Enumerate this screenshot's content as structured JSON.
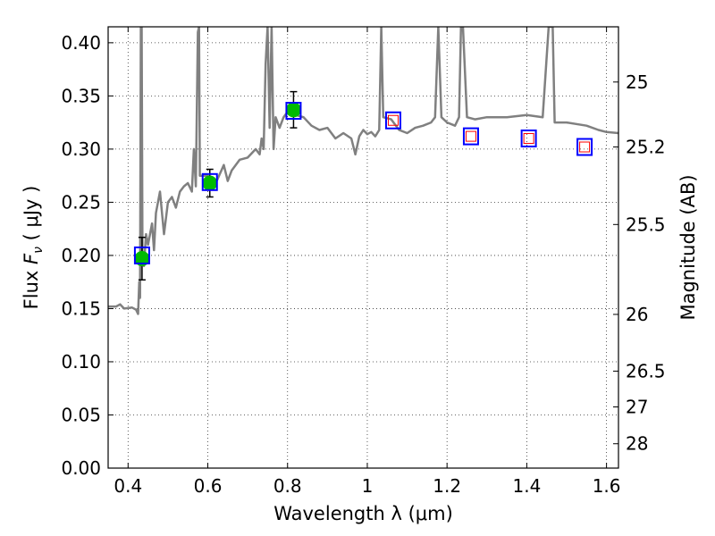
{
  "chart_data": {
    "type": "scatter",
    "xlabel": "Wavelength  λ (μm)",
    "ylabel": "Flux  F_ν  ( μJy )",
    "ylabel_right": "Magnitude (AB)",
    "xlim": [
      0.35,
      1.63
    ],
    "ylim": [
      0.0,
      0.415
    ],
    "grid": true,
    "x_ticks": [
      0.4,
      0.6,
      0.8,
      1.0,
      1.2,
      1.4,
      1.6
    ],
    "x_tick_labels": [
      "0.4",
      "0.6",
      "0.8",
      "1",
      "1.2",
      "1.4",
      "1.6"
    ],
    "y_ticks": [
      0.0,
      0.05,
      0.1,
      0.15,
      0.2,
      0.25,
      0.3,
      0.35,
      0.4
    ],
    "y_tick_labels": [
      "0.00",
      "0.05",
      "0.10",
      "0.15",
      "0.20",
      "0.25",
      "0.30",
      "0.35",
      "0.40"
    ],
    "mag_ticks": [
      25,
      25.2,
      25.5,
      26,
      26.5,
      27,
      28
    ],
    "mag_tick_labels": [
      "25",
      "25.2",
      "25.5",
      "26",
      "26.5",
      "27",
      "28"
    ],
    "series": [
      {
        "kind": "model-spectrum",
        "color": "#808080",
        "points": [
          [
            0.35,
            0.152
          ],
          [
            0.37,
            0.152
          ],
          [
            0.38,
            0.154
          ],
          [
            0.39,
            0.15
          ],
          [
            0.41,
            0.151
          ],
          [
            0.42,
            0.149
          ],
          [
            0.425,
            0.145
          ],
          [
            0.428,
            0.175
          ],
          [
            0.43,
            0.16
          ],
          [
            0.432,
            0.415
          ],
          [
            0.434,
            0.415
          ],
          [
            0.436,
            0.2
          ],
          [
            0.44,
            0.19
          ],
          [
            0.445,
            0.22
          ],
          [
            0.45,
            0.21
          ],
          [
            0.46,
            0.23
          ],
          [
            0.465,
            0.205
          ],
          [
            0.47,
            0.24
          ],
          [
            0.48,
            0.26
          ],
          [
            0.49,
            0.22
          ],
          [
            0.5,
            0.25
          ],
          [
            0.51,
            0.255
          ],
          [
            0.52,
            0.245
          ],
          [
            0.53,
            0.26
          ],
          [
            0.54,
            0.265
          ],
          [
            0.55,
            0.268
          ],
          [
            0.56,
            0.26
          ],
          [
            0.565,
            0.3
          ],
          [
            0.57,
            0.265
          ],
          [
            0.575,
            0.41
          ],
          [
            0.578,
            0.415
          ],
          [
            0.58,
            0.275
          ],
          [
            0.6,
            0.275
          ],
          [
            0.62,
            0.268
          ],
          [
            0.64,
            0.285
          ],
          [
            0.65,
            0.27
          ],
          [
            0.66,
            0.28
          ],
          [
            0.68,
            0.29
          ],
          [
            0.7,
            0.292
          ],
          [
            0.72,
            0.3
          ],
          [
            0.73,
            0.295
          ],
          [
            0.735,
            0.31
          ],
          [
            0.74,
            0.3
          ],
          [
            0.745,
            0.38
          ],
          [
            0.75,
            0.415
          ],
          [
            0.755,
            0.32
          ],
          [
            0.76,
            0.415
          ],
          [
            0.765,
            0.3
          ],
          [
            0.77,
            0.33
          ],
          [
            0.78,
            0.32
          ],
          [
            0.79,
            0.33
          ],
          [
            0.8,
            0.335
          ],
          [
            0.82,
            0.332
          ],
          [
            0.84,
            0.33
          ],
          [
            0.86,
            0.322
          ],
          [
            0.88,
            0.318
          ],
          [
            0.9,
            0.32
          ],
          [
            0.92,
            0.31
          ],
          [
            0.94,
            0.315
          ],
          [
            0.96,
            0.31
          ],
          [
            0.97,
            0.295
          ],
          [
            0.98,
            0.312
          ],
          [
            0.99,
            0.318
          ],
          [
            1.0,
            0.314
          ],
          [
            1.01,
            0.316
          ],
          [
            1.02,
            0.312
          ],
          [
            1.03,
            0.318
          ],
          [
            1.035,
            0.415
          ],
          [
            1.04,
            0.33
          ],
          [
            1.06,
            0.328
          ],
          [
            1.08,
            0.318
          ],
          [
            1.1,
            0.315
          ],
          [
            1.12,
            0.32
          ],
          [
            1.14,
            0.322
          ],
          [
            1.16,
            0.325
          ],
          [
            1.17,
            0.33
          ],
          [
            1.178,
            0.415
          ],
          [
            1.186,
            0.33
          ],
          [
            1.2,
            0.325
          ],
          [
            1.22,
            0.322
          ],
          [
            1.23,
            0.33
          ],
          [
            1.235,
            0.415
          ],
          [
            1.24,
            0.415
          ],
          [
            1.25,
            0.33
          ],
          [
            1.27,
            0.328
          ],
          [
            1.3,
            0.33
          ],
          [
            1.35,
            0.33
          ],
          [
            1.4,
            0.332
          ],
          [
            1.44,
            0.33
          ],
          [
            1.455,
            0.415
          ],
          [
            1.465,
            0.415
          ],
          [
            1.47,
            0.325
          ],
          [
            1.5,
            0.325
          ],
          [
            1.55,
            0.322
          ],
          [
            1.58,
            0.318
          ],
          [
            1.6,
            0.316
          ],
          [
            1.63,
            0.315
          ]
        ]
      },
      {
        "kind": "observed-detections",
        "marker": "circle",
        "color": "#00bb00",
        "points": [
          [
            0.435,
            0.197
          ],
          [
            0.605,
            0.268
          ],
          [
            0.815,
            0.337
          ]
        ],
        "errors": [
          0.02,
          0.013,
          0.017
        ]
      },
      {
        "kind": "model-photometry-squares",
        "marker": "square",
        "color": "#0000ff",
        "points": [
          [
            0.435,
            0.2
          ],
          [
            0.605,
            0.269
          ],
          [
            0.815,
            0.336
          ],
          [
            1.065,
            0.327
          ],
          [
            1.26,
            0.312
          ],
          [
            1.405,
            0.31
          ],
          [
            1.545,
            0.302
          ]
        ]
      },
      {
        "kind": "observed-upper-points",
        "marker": "square",
        "color": "#ff0000",
        "points": [
          [
            1.065,
            0.327
          ],
          [
            1.26,
            0.312
          ],
          [
            1.405,
            0.31
          ],
          [
            1.545,
            0.302
          ]
        ]
      }
    ]
  }
}
